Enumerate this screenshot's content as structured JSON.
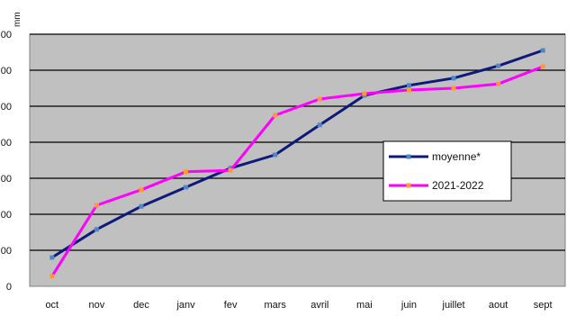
{
  "chart_data": {
    "type": "line",
    "title": "",
    "xlabel": "",
    "ylabel": "",
    "unit_label": "mm",
    "categories": [
      "oct",
      "nov",
      "dec",
      "janv",
      "fev",
      "mars",
      "avril",
      "mai",
      "juin",
      "juillet",
      "aout",
      "sept"
    ],
    "y_ticks": [
      "0",
      "00",
      "00",
      "00",
      "00",
      "00",
      "00",
      "00"
    ],
    "ylim": [
      0,
      700
    ],
    "grid": true,
    "plot_background": "#c0c0c0",
    "legend_position": "right",
    "series": [
      {
        "name": "moyenne*",
        "color": "#0d1a7a",
        "marker_color": "#4f86c6",
        "values": [
          80,
          158,
          222,
          275,
          328,
          365,
          448,
          530,
          558,
          578,
          612,
          655
        ]
      },
      {
        "name": "2021-2022",
        "color": "#ff00ff",
        "marker_color": "#ff9933",
        "values": [
          28,
          225,
          268,
          318,
          322,
          475,
          520,
          535,
          545,
          550,
          562,
          610
        ]
      }
    ]
  }
}
